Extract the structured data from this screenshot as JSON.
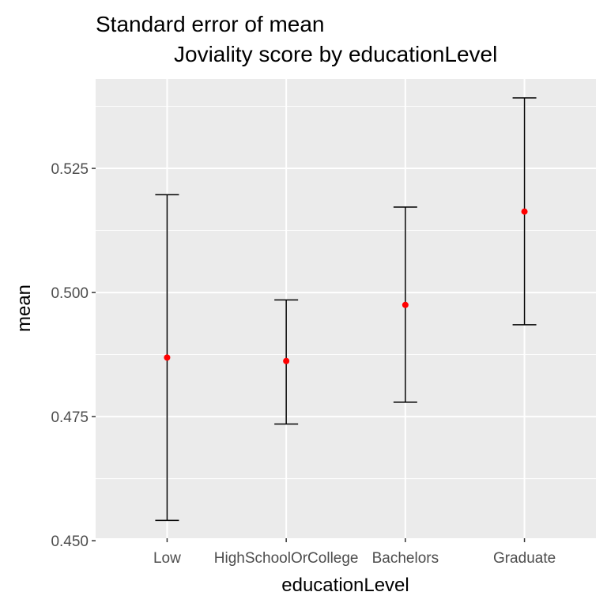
{
  "chart_data": {
    "type": "errorbar",
    "title": "Standard error of mean",
    "subtitle": "Joviality score by educationLevel",
    "xlabel": "educationLevel",
    "ylabel": "mean",
    "categories": [
      "Low",
      "HighSchoolOrCollege",
      "Bachelors",
      "Graduate"
    ],
    "series": [
      {
        "values": [
          0.4869,
          0.4862,
          0.4975,
          0.5163
        ],
        "lower": [
          0.4541,
          0.4735,
          0.4779,
          0.4935
        ],
        "upper": [
          0.5197,
          0.4985,
          0.5172,
          0.5392
        ]
      }
    ],
    "ylim": [
      0.4505,
      0.543
    ],
    "yticks": [
      0.45,
      0.475,
      0.5,
      0.525
    ],
    "ytick_labels": [
      "0.450",
      "0.475",
      "0.500",
      "0.525"
    ],
    "grid": true,
    "legend": "none",
    "colors": {
      "panel_background": "#EBEBEB",
      "grid_major": "#FFFFFF",
      "point": "#FF0000",
      "errorbar": "#000000"
    }
  }
}
